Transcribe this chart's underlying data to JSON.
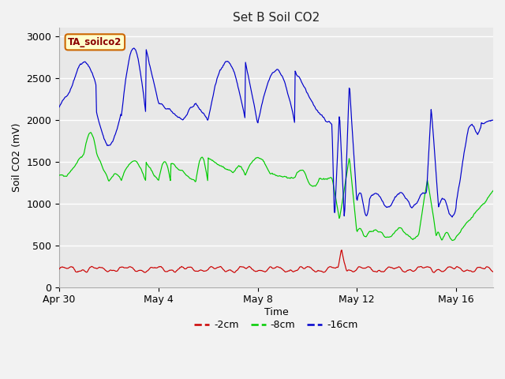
{
  "title": "Set B Soil CO2",
  "xlabel": "Time",
  "ylabel": "Soil CO2 (mV)",
  "ylim": [
    0,
    3100
  ],
  "xlim_days": [
    0.0,
    17.5
  ],
  "annotation": "TA_soilco2",
  "plot_bg": "#e8e8e8",
  "fig_bg": "#f2f2f2",
  "color_red": "#cc0000",
  "color_green": "#00cc00",
  "color_blue": "#0000cc",
  "legend_labels": [
    "-2cm",
    "-8cm",
    "-16cm"
  ],
  "xtick_pos": [
    0,
    4,
    8,
    12,
    16
  ],
  "xtick_labels": [
    "Apr 30",
    "May 4",
    "May 8",
    "May 12",
    "May 16"
  ],
  "ytick_pos": [
    0,
    500,
    1000,
    1500,
    2000,
    2500,
    3000
  ]
}
